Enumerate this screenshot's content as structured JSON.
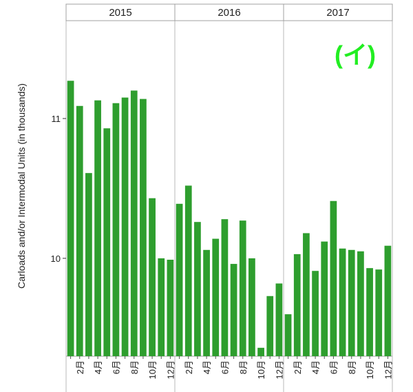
{
  "badge": {
    "text": "(イ)",
    "color": "#22ee22"
  },
  "chart_data": {
    "type": "bar",
    "ylabel": "Carloads and/or Intermodal Units (in thousands)",
    "ylim": [
      9.3,
      11.7
    ],
    "yticks": [
      10,
      11
    ],
    "ytick_labels": [
      "10",
      "11"
    ],
    "bar_color": "#2e9e2e",
    "grid": "vertical panel dividers only",
    "panels": [
      {
        "label": "2015",
        "months": [
          1,
          2,
          3,
          4,
          5,
          6,
          7,
          8,
          9,
          10,
          11,
          12
        ],
        "month_labels": [
          "",
          "2月",
          "",
          "4月",
          "",
          "6月",
          "",
          "8月",
          "",
          "10月",
          "",
          "12月"
        ],
        "values": [
          11.27,
          11.09,
          10.61,
          11.13,
          10.93,
          11.11,
          11.15,
          11.2,
          11.14,
          10.43,
          10.0,
          9.99
        ]
      },
      {
        "label": "2016",
        "months": [
          1,
          2,
          3,
          4,
          5,
          6,
          7,
          8,
          9,
          10,
          11,
          12
        ],
        "month_labels": [
          "",
          "2月",
          "",
          "4月",
          "",
          "6月",
          "",
          "8月",
          "",
          "10月",
          "",
          "12月"
        ],
        "values": [
          10.39,
          10.52,
          10.26,
          10.06,
          10.14,
          10.28,
          9.96,
          10.27,
          10.0,
          9.36,
          9.73,
          9.82
        ]
      },
      {
        "label": "2017",
        "months": [
          1,
          2,
          3,
          4,
          5,
          6,
          7,
          8,
          9,
          10,
          11,
          12
        ],
        "month_labels": [
          "",
          "2月",
          "",
          "4月",
          "",
          "6月",
          "",
          "8月",
          "",
          "10月",
          "",
          "12月"
        ],
        "values": [
          9.6,
          10.03,
          10.18,
          9.91,
          10.12,
          10.41,
          10.07,
          10.06,
          10.05,
          9.93,
          9.92,
          10.09
        ]
      }
    ]
  }
}
